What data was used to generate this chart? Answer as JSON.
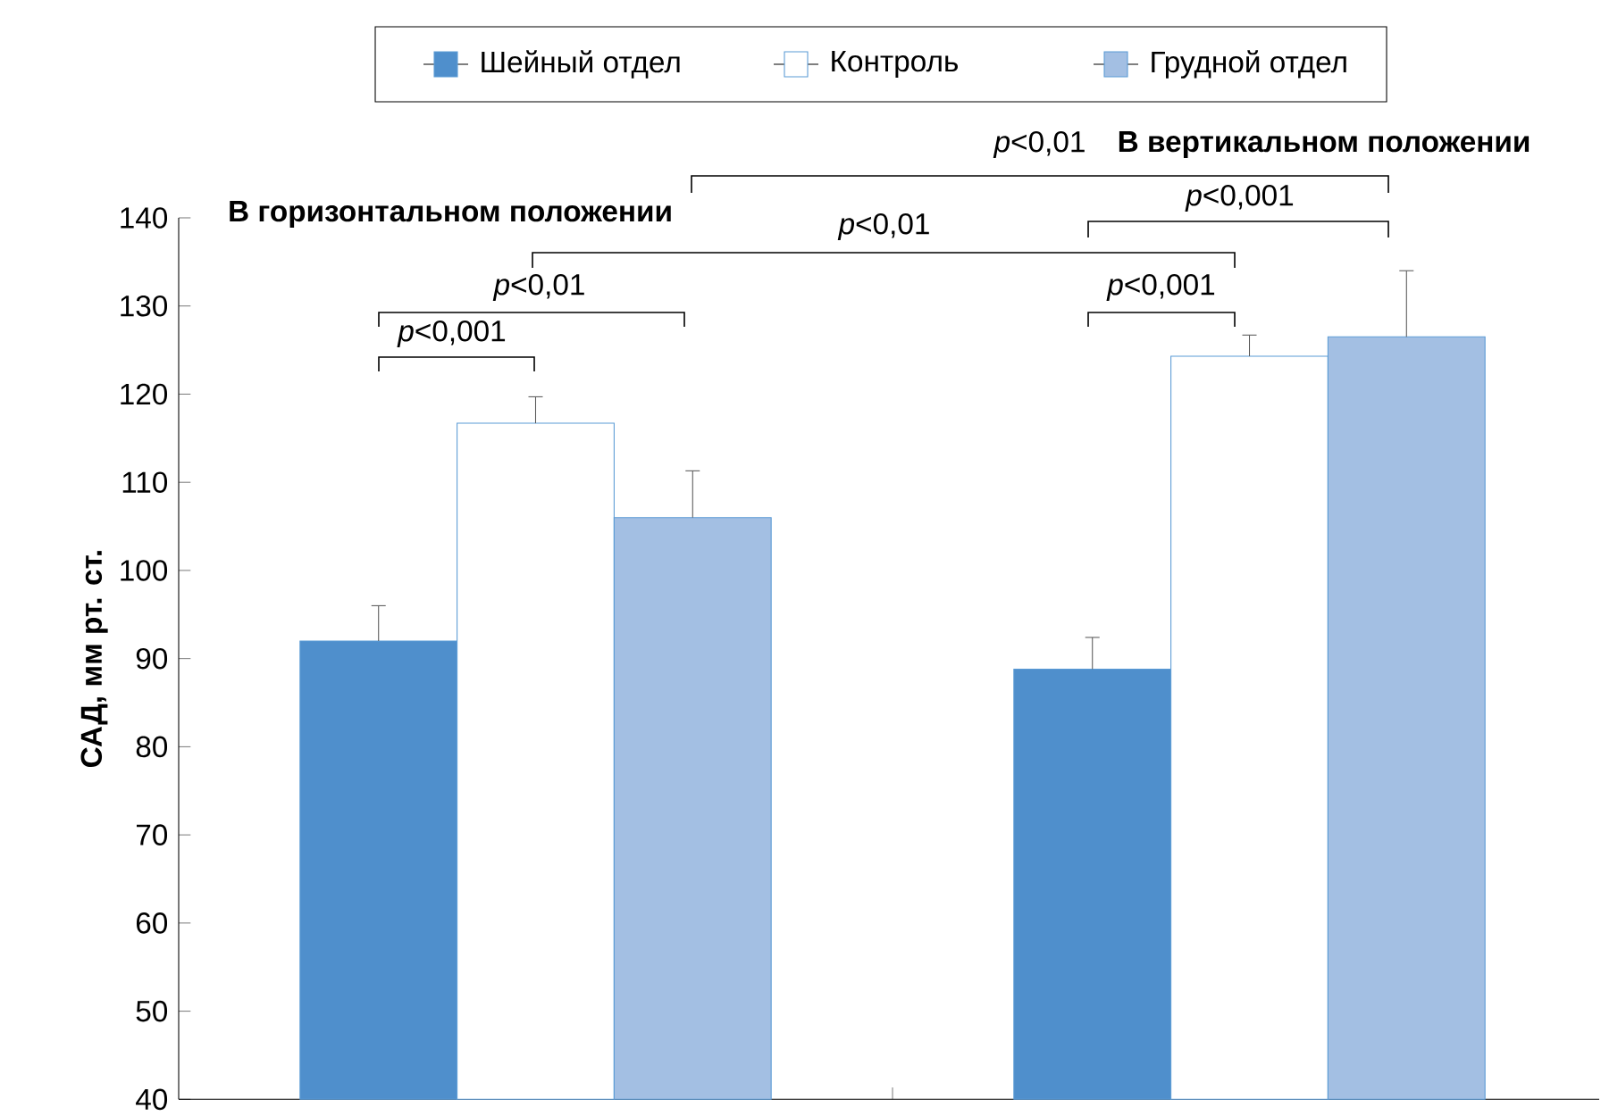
{
  "chart_data": {
    "type": "bar",
    "ylabel": "САД, мм рт. ст.",
    "categories": [
      null,
      null
    ],
    "series": [
      {
        "name": "Шейный отдел",
        "color": "#4f8fcc",
        "values": [
          92,
          88.8
        ],
        "errors": [
          4,
          3.6
        ]
      },
      {
        "name": "Контроль",
        "color": "#ffffff",
        "values": [
          116.7,
          124.3
        ],
        "errors": [
          3,
          2.4
        ]
      },
      {
        "name": "Грудной отдел",
        "color": "#a3bfe3",
        "values": [
          106,
          126.5
        ],
        "errors": [
          5.3,
          7.5
        ]
      }
    ],
    "ylim": [
      40,
      140
    ],
    "yticks": [
      40,
      50,
      60,
      70,
      80,
      90,
      100,
      110,
      120,
      130,
      140
    ],
    "legend": "top",
    "grid": false,
    "annotations": [
      "В горизонтальном положении",
      "В вертикальном положении",
      "*p*<0,001",
      "*p*<0,01",
      "*p*<0,01",
      "*p*<0,01",
      "*p*<0,001",
      "*p*<0,001"
    ]
  }
}
